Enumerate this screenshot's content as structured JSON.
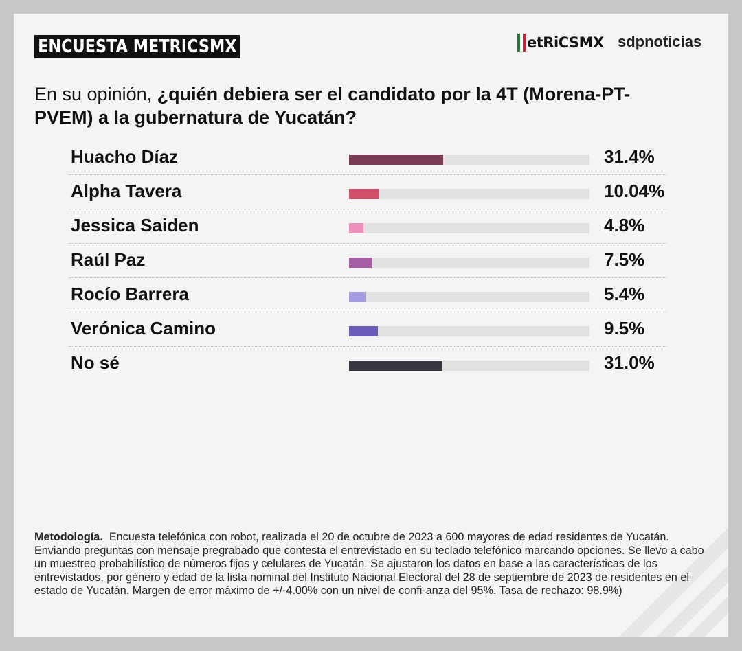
{
  "header": {
    "badge": "ENCUESTA METRICSMX",
    "logo_metrics": "etRiCSMX",
    "logo_sdp": "sdpnoticias",
    "flag_colors": [
      "#1f7a3a",
      "#ffffff",
      "#c8202f"
    ]
  },
  "question": {
    "prefix": "En su opinión, ",
    "bold": "¿quién debiera ser el candidato por la 4T (Morena-PT-PVEM) a la gubernatura de Yucatán?"
  },
  "chart_data": {
    "type": "bar",
    "orientation": "horizontal",
    "categories": [
      "Huacho Díaz",
      "Alpha Tavera",
      "Jessica Saiden",
      "Raúl Paz",
      "Rocío Barrera",
      "Verónica Camino",
      "No sé"
    ],
    "values": [
      31.4,
      10.04,
      4.8,
      7.5,
      5.4,
      9.5,
      31.0
    ],
    "labels": [
      "31.4%",
      "10.04%",
      "4.8%",
      "7.5%",
      "5.4%",
      "9.5%",
      "31.0%"
    ],
    "colors": [
      "#7a3b55",
      "#d04f6b",
      "#eb91bb",
      "#a55ea3",
      "#a39de2",
      "#6a5db9",
      "#38353f"
    ],
    "xlim": [
      0,
      80
    ],
    "track_color": "#e1e1e1"
  },
  "methodology": {
    "label": "Metodología.",
    "text": "Encuesta telefónica con robot, realizada el 20 de octubre de 2023 a 600 mayores de edad residentes de Yucatán. Enviando preguntas con mensaje pregrabado que contesta el entrevistado en su teclado telefónico marcando opciones. Se llevo a cabo un muestreo probabilístico de números fijos y celulares de Yucatán. Se ajustaron los datos en base a las características de los entrevistados, por género y edad de la lista nominal del Instituto Nacional Electoral del 28 de septiembre de 2023 de residentes en el estado de Yucatán. Margen de error máximo de +/-4.00% con un nivel de confi-anza del 95%. Tasa de rechazo: 98.9%)"
  }
}
